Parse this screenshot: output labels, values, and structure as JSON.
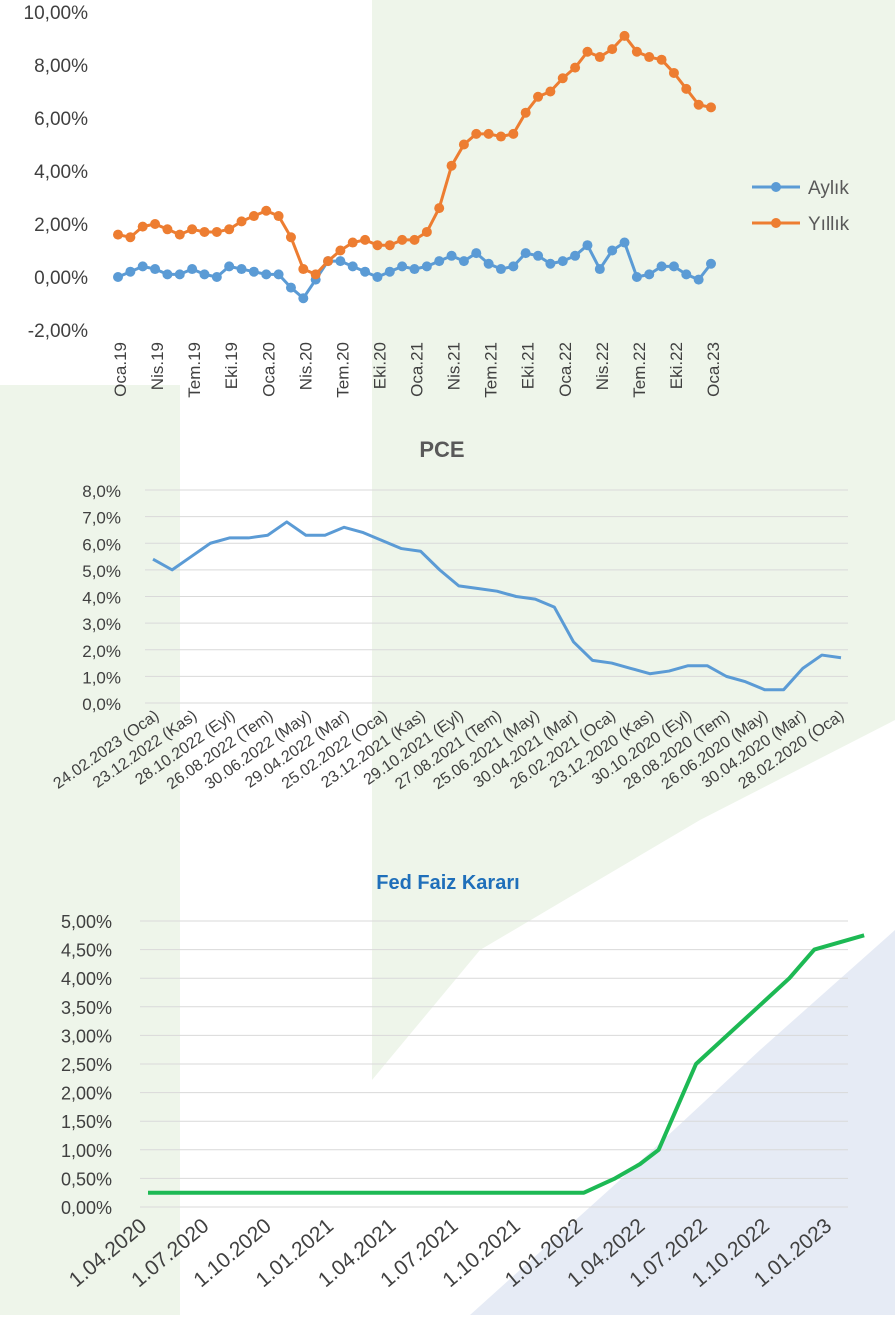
{
  "chart_data": [
    {
      "type": "line",
      "title": "",
      "y_ticks": [
        "10,00%",
        "8,00%",
        "6,00%",
        "4,00%",
        "2,00%",
        "0,00%",
        "-2,00%"
      ],
      "ylim": [
        -2,
        10
      ],
      "x_tick_labels": [
        "Oca.19",
        "Nis.19",
        "Tem.19",
        "Eki.19",
        "Oca.20",
        "Nis.20",
        "Tem.20",
        "Eki.20",
        "Oca.21",
        "Nis.21",
        "Tem.21",
        "Eki.21",
        "Oca.22",
        "Nis.22",
        "Tem.22",
        "Eki.22",
        "Oca.23"
      ],
      "legend_position": "right",
      "grid": false,
      "series": [
        {
          "name": "Aylık",
          "color": "#5b9bd5",
          "values": [
            0.0,
            0.2,
            0.4,
            0.3,
            0.1,
            0.1,
            0.3,
            0.1,
            0.0,
            0.4,
            0.3,
            0.2,
            0.1,
            0.1,
            -0.4,
            -0.8,
            -0.1,
            0.6,
            0.6,
            0.4,
            0.2,
            0.0,
            0.2,
            0.4,
            0.3,
            0.4,
            0.6,
            0.8,
            0.6,
            0.9,
            0.5,
            0.3,
            0.4,
            0.9,
            0.8,
            0.5,
            0.6,
            0.8,
            1.2,
            0.3,
            1.0,
            1.3,
            0.0,
            0.1,
            0.4,
            0.4,
            0.1,
            -0.1,
            0.5
          ]
        },
        {
          "name": "Yıllık",
          "color": "#ed7d31",
          "values": [
            1.6,
            1.5,
            1.9,
            2.0,
            1.8,
            1.6,
            1.8,
            1.7,
            1.7,
            1.8,
            2.1,
            2.3,
            2.5,
            2.3,
            1.5,
            0.3,
            0.1,
            0.6,
            1.0,
            1.3,
            1.4,
            1.2,
            1.2,
            1.4,
            1.4,
            1.7,
            2.6,
            4.2,
            5.0,
            5.4,
            5.4,
            5.3,
            5.4,
            6.2,
            6.8,
            7.0,
            7.5,
            7.9,
            8.5,
            8.3,
            8.6,
            9.1,
            8.5,
            8.3,
            8.2,
            7.7,
            7.1,
            6.5,
            6.4
          ]
        }
      ]
    },
    {
      "type": "line",
      "title": "PCE",
      "y_ticks": [
        "8,0%",
        "7,0%",
        "6,0%",
        "5,0%",
        "4,0%",
        "3,0%",
        "2,0%",
        "1,0%",
        "0,0%"
      ],
      "ylim": [
        0,
        8
      ],
      "grid": true,
      "x_tick_labels": [
        "24.02.2023 (Oca)",
        "23.12.2022 (Kas)",
        "28.10.2022 (Eyl)",
        "26.08.2022 (Tem)",
        "30.06.2022 (May)",
        "29.04.2022 (Mar)",
        "25.02.2022 (Oca)",
        "23.12.2021 (Kas)",
        "29.10.2021 (Eyl)",
        "27.08.2021 (Tem)",
        "25.06.2021 (May)",
        "30.04.2021 (Mar)",
        "26.02.2021 (Oca)",
        "23.12.2020 (Kas)",
        "30.10.2020 (Eyl)",
        "28.08.2020 (Tem)",
        "26.06.2020 (May)",
        "30.04.2020 (Mar)",
        "28.02.2020 (Oca)"
      ],
      "series": [
        {
          "name": "",
          "color": "#5b9bd5",
          "values": [
            5.4,
            5.0,
            5.5,
            6.0,
            6.2,
            6.2,
            6.3,
            6.8,
            6.3,
            6.3,
            6.6,
            6.4,
            6.1,
            5.8,
            5.7,
            5.0,
            4.4,
            4.3,
            4.2,
            4.0,
            3.9,
            3.6,
            2.3,
            1.6,
            1.5,
            1.3,
            1.1,
            1.2,
            1.4,
            1.4,
            1.0,
            0.8,
            0.5,
            0.5,
            1.3,
            1.8,
            1.7
          ]
        }
      ]
    },
    {
      "type": "line",
      "title": "Fed Faiz Kararı",
      "title_color": "#1f6fba",
      "y_ticks": [
        "5,00%",
        "4,50%",
        "4,00%",
        "3,50%",
        "3,00%",
        "2,50%",
        "2,00%",
        "1,50%",
        "1,00%",
        "0,50%",
        "0,00%"
      ],
      "ylim": [
        0,
        5
      ],
      "grid": true,
      "x_tick_labels": [
        "1.04.2020",
        "1.07.2020",
        "1.10.2020",
        "1.01.2021",
        "1.04.2021",
        "1.07.2021",
        "1.10.2021",
        "1.01.2022",
        "1.04.2022",
        "1.07.2022",
        "1.10.2022",
        "1.01.2023"
      ],
      "series": [
        {
          "name": "",
          "color": "#1db954",
          "points": [
            [
              0,
              0.25
            ],
            [
              7,
              0.25
            ],
            [
              7.5,
              0.5
            ],
            [
              7.9,
              0.75
            ],
            [
              8.2,
              1.0
            ],
            [
              8.5,
              1.75
            ],
            [
              8.8,
              2.5
            ],
            [
              9.3,
              3.0
            ],
            [
              9.8,
              3.5
            ],
            [
              10.3,
              4.0
            ],
            [
              10.7,
              4.5
            ],
            [
              11.5,
              4.75
            ]
          ]
        }
      ]
    }
  ]
}
